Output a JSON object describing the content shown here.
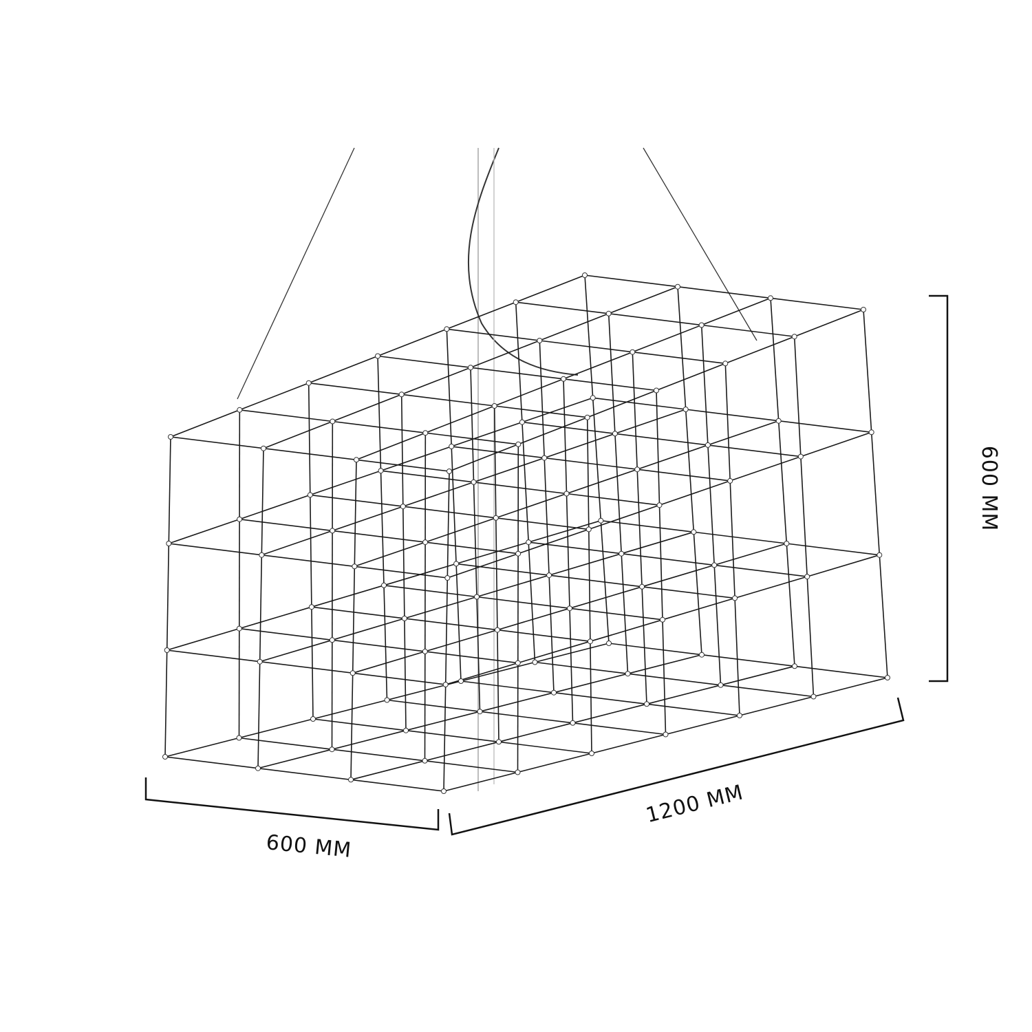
{
  "dimensions": {
    "height_label": "600 MM",
    "depth_label": "600 MM",
    "length_label": "1200 MM"
  },
  "colors": {
    "line": "#1a1a1a",
    "background": "#ffffff"
  }
}
